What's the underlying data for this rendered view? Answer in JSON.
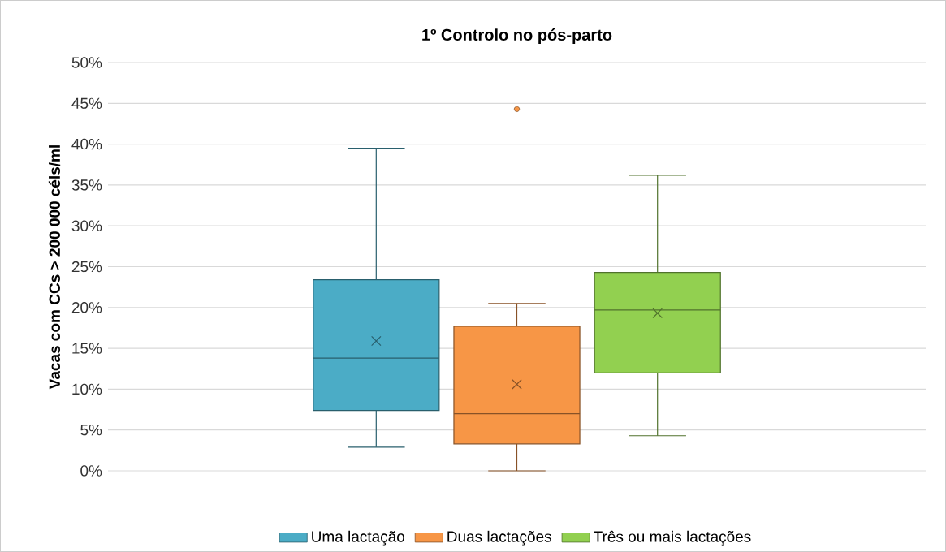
{
  "chart_data": {
    "type": "box",
    "title": "1º Controlo no pós-parto",
    "ylabel": "Vacas com CCs > 200 000 céls/ml",
    "categories": [
      null
    ],
    "series": [
      {
        "name": "Uma lactação",
        "color": "#4bacc6",
        "boxes": [
          {
            "low": 2.9,
            "q1": 7.4,
            "median": 13.8,
            "q3": 23.4,
            "high": 39.5,
            "mean": 15.9
          }
        ]
      },
      {
        "name": "Duas lactações",
        "color": "#f79646",
        "boxes": [
          {
            "low": 0,
            "q1": 3.3,
            "median": 7.0,
            "q3": 17.7,
            "high": 20.5,
            "mean": 10.6,
            "outliers": [
              44.3
            ]
          }
        ]
      },
      {
        "name": "Três ou mais lactações",
        "color": "#92d050",
        "boxes": [
          {
            "low": 4.3,
            "q1": 12.0,
            "median": 19.7,
            "q3": 24.3,
            "high": 36.2,
            "mean": 19.3
          }
        ]
      }
    ],
    "ylim": [
      0,
      50
    ],
    "yticks": [
      {
        "value": 0,
        "label": "0%"
      },
      {
        "value": 5,
        "label": "5%"
      },
      {
        "value": 10,
        "label": "10%"
      },
      {
        "value": 15,
        "label": "15%"
      },
      {
        "value": 20,
        "label": "20%"
      },
      {
        "value": 25,
        "label": "25%"
      },
      {
        "value": 30,
        "label": "30%"
      },
      {
        "value": 35,
        "label": "35%"
      },
      {
        "value": 40,
        "label": "40%"
      },
      {
        "value": 45,
        "label": "45%"
      },
      {
        "value": 50,
        "label": "50%"
      }
    ],
    "grid": "y",
    "legend": "bottom"
  }
}
